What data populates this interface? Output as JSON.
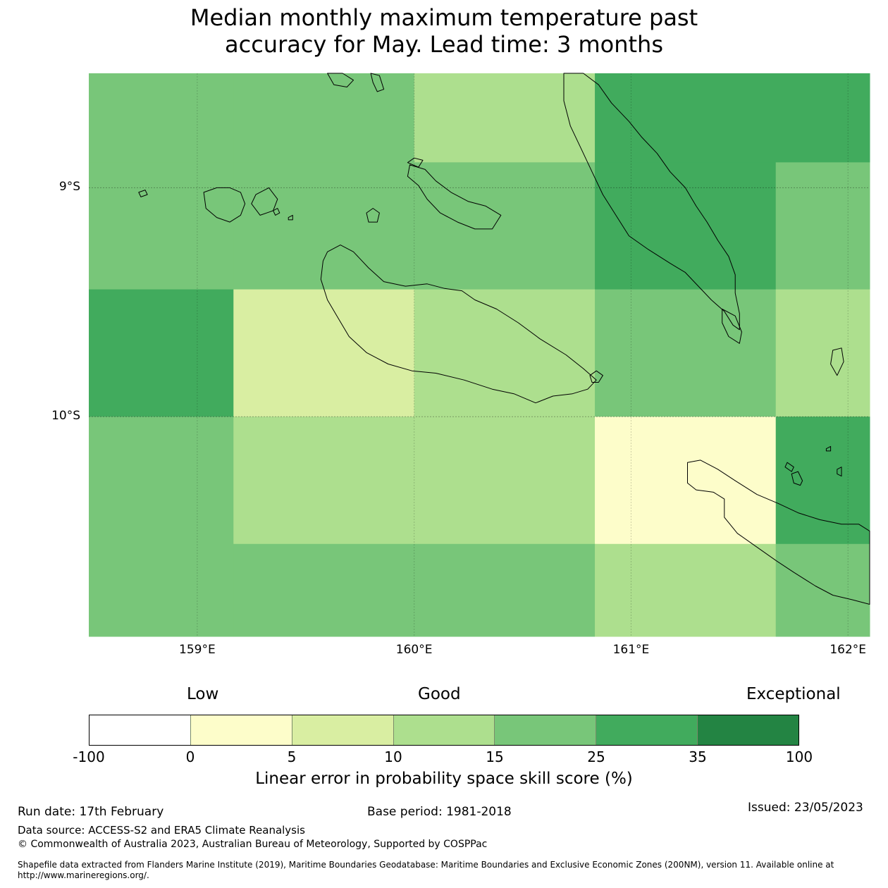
{
  "title": {
    "line1": "Median monthly maximum temperature past",
    "line2": "accuracy for May. Lead time: 3 months"
  },
  "map": {
    "extent": {
      "lon_min": 158.5,
      "lon_max": 162.1,
      "lat_min": -10.96,
      "lat_max": -8.5
    },
    "lat_ticks": [
      {
        "value": -9,
        "label": "9°S"
      },
      {
        "value": -10,
        "label": "10°S"
      }
    ],
    "lon_ticks": [
      {
        "value": 159,
        "label": "159°E"
      },
      {
        "value": 160,
        "label": "160°E"
      },
      {
        "value": 161,
        "label": "161°E"
      },
      {
        "value": 162,
        "label": "162°E"
      }
    ],
    "lon_edges": [
      158.5,
      159.167,
      160.0,
      160.833,
      161.667,
      162.1
    ],
    "lat_edges": [
      -8.5,
      -8.889,
      -9.444,
      -10.0,
      -10.556,
      -10.96
    ],
    "skill_category_grid": [
      [
        4,
        4,
        3,
        5,
        5
      ],
      [
        4,
        4,
        4,
        5,
        4
      ],
      [
        5,
        2,
        3,
        4,
        3
      ],
      [
        4,
        3,
        3,
        1,
        5
      ],
      [
        4,
        4,
        4,
        3,
        4
      ]
    ],
    "islands": [
      {
        "name": "Florida Islands west",
        "points": [
          [
            159.03,
            -9.02
          ],
          [
            159.09,
            -9.0
          ],
          [
            159.15,
            -9.0
          ],
          [
            159.2,
            -9.02
          ],
          [
            159.22,
            -9.07
          ],
          [
            159.2,
            -9.12
          ],
          [
            159.15,
            -9.15
          ],
          [
            159.09,
            -9.13
          ],
          [
            159.04,
            -9.09
          ]
        ]
      },
      {
        "name": "Florida Islands east",
        "points": [
          [
            159.27,
            -9.03
          ],
          [
            159.33,
            -9.0
          ],
          [
            159.37,
            -9.05
          ],
          [
            159.35,
            -9.1
          ],
          [
            159.29,
            -9.12
          ],
          [
            159.25,
            -9.07
          ]
        ]
      },
      {
        "name": "Small islet west",
        "points": [
          [
            158.73,
            -9.02
          ],
          [
            158.76,
            -9.01
          ],
          [
            158.77,
            -9.03
          ],
          [
            158.74,
            -9.04
          ]
        ]
      },
      {
        "name": "Small islet 1",
        "points": [
          [
            159.35,
            -9.1
          ],
          [
            159.37,
            -9.09
          ],
          [
            159.38,
            -9.11
          ],
          [
            159.36,
            -9.12
          ]
        ]
      },
      {
        "name": "Small islet 2",
        "points": [
          [
            159.42,
            -9.13
          ],
          [
            159.44,
            -9.12
          ],
          [
            159.44,
            -9.14
          ],
          [
            159.42,
            -9.14
          ]
        ]
      },
      {
        "name": "Savo-like islet",
        "points": [
          [
            159.78,
            -9.11
          ],
          [
            159.81,
            -9.09
          ],
          [
            159.84,
            -9.11
          ],
          [
            159.83,
            -9.15
          ],
          [
            159.79,
            -9.15
          ]
        ]
      },
      {
        "name": "Nggela Islands",
        "points": [
          [
            159.98,
            -8.9
          ],
          [
            160.05,
            -8.92
          ],
          [
            160.1,
            -8.97
          ],
          [
            160.17,
            -9.02
          ],
          [
            160.25,
            -9.06
          ],
          [
            160.33,
            -9.08
          ],
          [
            160.4,
            -9.12
          ],
          [
            160.36,
            -9.18
          ],
          [
            160.28,
            -9.18
          ],
          [
            160.2,
            -9.15
          ],
          [
            160.12,
            -9.11
          ],
          [
            160.06,
            -9.05
          ],
          [
            160.02,
            -8.99
          ],
          [
            159.97,
            -8.95
          ]
        ]
      },
      {
        "name": "Nggela islet",
        "points": [
          [
            159.97,
            -8.89
          ],
          [
            160.0,
            -8.87
          ],
          [
            160.04,
            -8.88
          ],
          [
            160.02,
            -8.91
          ]
        ]
      },
      {
        "name": "Guadalcanal",
        "points": [
          [
            159.6,
            -9.28
          ],
          [
            159.66,
            -9.25
          ],
          [
            159.72,
            -9.28
          ],
          [
            159.79,
            -9.35
          ],
          [
            159.86,
            -9.41
          ],
          [
            159.96,
            -9.43
          ],
          [
            160.06,
            -9.42
          ],
          [
            160.14,
            -9.44
          ],
          [
            160.22,
            -9.45
          ],
          [
            160.28,
            -9.49
          ],
          [
            160.38,
            -9.53
          ],
          [
            160.48,
            -9.59
          ],
          [
            160.58,
            -9.66
          ],
          [
            160.7,
            -9.73
          ],
          [
            160.78,
            -9.79
          ],
          [
            160.84,
            -9.84
          ],
          [
            160.8,
            -9.88
          ],
          [
            160.73,
            -9.9
          ],
          [
            160.64,
            -9.91
          ],
          [
            160.56,
            -9.94
          ],
          [
            160.46,
            -9.9
          ],
          [
            160.36,
            -9.88
          ],
          [
            160.23,
            -9.84
          ],
          [
            160.1,
            -9.81
          ],
          [
            159.99,
            -9.8
          ],
          [
            159.88,
            -9.77
          ],
          [
            159.78,
            -9.72
          ],
          [
            159.7,
            -9.65
          ],
          [
            159.65,
            -9.57
          ],
          [
            159.6,
            -9.49
          ],
          [
            159.57,
            -9.4
          ],
          [
            159.58,
            -9.32
          ]
        ]
      },
      {
        "name": "Guadalcanal islet",
        "points": [
          [
            160.81,
            -9.82
          ],
          [
            160.84,
            -9.8
          ],
          [
            160.87,
            -9.82
          ],
          [
            160.85,
            -9.85
          ],
          [
            160.82,
            -9.85
          ]
        ]
      },
      {
        "name": "Malaita",
        "points": [
          [
            160.69,
            -8.5
          ],
          [
            160.78,
            -8.5
          ],
          [
            160.85,
            -8.55
          ],
          [
            160.91,
            -8.63
          ],
          [
            160.99,
            -8.71
          ],
          [
            161.05,
            -8.78
          ],
          [
            161.12,
            -8.85
          ],
          [
            161.18,
            -8.93
          ],
          [
            161.25,
            -9.0
          ],
          [
            161.3,
            -9.08
          ],
          [
            161.35,
            -9.15
          ],
          [
            161.4,
            -9.23
          ],
          [
            161.45,
            -9.3
          ],
          [
            161.48,
            -9.38
          ],
          [
            161.48,
            -9.46
          ],
          [
            161.5,
            -9.55
          ],
          [
            161.5,
            -9.62
          ],
          [
            161.47,
            -9.6
          ],
          [
            161.43,
            -9.54
          ],
          [
            161.37,
            -9.49
          ],
          [
            161.31,
            -9.43
          ],
          [
            161.25,
            -9.37
          ],
          [
            161.18,
            -9.33
          ],
          [
            161.08,
            -9.27
          ],
          [
            160.99,
            -9.21
          ],
          [
            160.93,
            -9.12
          ],
          [
            160.87,
            -9.03
          ],
          [
            160.82,
            -8.93
          ],
          [
            160.77,
            -8.83
          ],
          [
            160.72,
            -8.73
          ],
          [
            160.69,
            -8.62
          ]
        ]
      },
      {
        "name": "Small Malaita",
        "points": [
          [
            161.42,
            -9.53
          ],
          [
            161.48,
            -9.56
          ],
          [
            161.51,
            -9.63
          ],
          [
            161.5,
            -9.68
          ],
          [
            161.45,
            -9.65
          ],
          [
            161.42,
            -9.59
          ]
        ]
      },
      {
        "name": "Ulawa",
        "points": [
          [
            161.93,
            -9.71
          ],
          [
            161.97,
            -9.7
          ],
          [
            161.98,
            -9.76
          ],
          [
            161.95,
            -9.82
          ],
          [
            161.92,
            -9.77
          ]
        ]
      },
      {
        "name": "Makira",
        "points": [
          [
            161.26,
            -10.2
          ],
          [
            161.32,
            -10.19
          ],
          [
            161.4,
            -10.23
          ],
          [
            161.48,
            -10.28
          ],
          [
            161.58,
            -10.34
          ],
          [
            161.68,
            -10.38
          ],
          [
            161.77,
            -10.42
          ],
          [
            161.87,
            -10.45
          ],
          [
            161.97,
            -10.47
          ],
          [
            162.05,
            -10.47
          ],
          [
            162.1,
            -10.5
          ],
          [
            162.1,
            -10.82
          ],
          [
            162.02,
            -10.8
          ],
          [
            161.93,
            -10.78
          ],
          [
            161.85,
            -10.74
          ],
          [
            161.75,
            -10.68
          ],
          [
            161.67,
            -10.63
          ],
          [
            161.58,
            -10.57
          ],
          [
            161.49,
            -10.51
          ],
          [
            161.43,
            -10.44
          ],
          [
            161.43,
            -10.36
          ],
          [
            161.38,
            -10.33
          ],
          [
            161.3,
            -10.32
          ],
          [
            161.26,
            -10.29
          ]
        ]
      },
      {
        "name": "Makira islet 1",
        "points": [
          [
            161.72,
            -10.2
          ],
          [
            161.75,
            -10.22
          ],
          [
            161.74,
            -10.24
          ],
          [
            161.71,
            -10.22
          ]
        ]
      },
      {
        "name": "Makira islet 2",
        "points": [
          [
            161.74,
            -10.25
          ],
          [
            161.77,
            -10.24
          ],
          [
            161.79,
            -10.28
          ],
          [
            161.78,
            -10.3
          ],
          [
            161.75,
            -10.29
          ]
        ]
      },
      {
        "name": "Makira islet 3",
        "points": [
          [
            161.9,
            -10.14
          ],
          [
            161.92,
            -10.13
          ],
          [
            161.92,
            -10.15
          ],
          [
            161.9,
            -10.15
          ]
        ]
      },
      {
        "name": "Makira islet 4",
        "points": [
          [
            161.95,
            -10.23
          ],
          [
            161.97,
            -10.22
          ],
          [
            161.97,
            -10.26
          ],
          [
            161.95,
            -10.25
          ]
        ]
      },
      {
        "name": "Florida north islet",
        "points": [
          [
            159.6,
            -8.5
          ],
          [
            159.67,
            -8.5
          ],
          [
            159.72,
            -8.53
          ],
          [
            159.69,
            -8.56
          ],
          [
            159.63,
            -8.55
          ]
        ]
      },
      {
        "name": "Florida north islet 2",
        "points": [
          [
            159.8,
            -8.5
          ],
          [
            159.84,
            -8.51
          ],
          [
            159.86,
            -8.57
          ],
          [
            159.83,
            -8.58
          ],
          [
            159.81,
            -8.54
          ]
        ]
      }
    ]
  },
  "legend": {
    "low": "Low",
    "good": "Good",
    "exceptional": "Exceptional",
    "colors": [
      "#ffffff",
      "#fdfdca",
      "#d9eea2",
      "#addf8e",
      "#78c679",
      "#41ab5d",
      "#238443"
    ],
    "ticks": [
      "-100",
      "0",
      "5",
      "10",
      "15",
      "25",
      "35",
      "100"
    ],
    "label": "Linear error in probability space skill score (%)"
  },
  "footer": {
    "run_date": "Run date: 17th February",
    "base_period": "Base period: 1981-2018",
    "issued": "Issued: 23/05/2023",
    "data_source": "Data source: ACCESS-S2 and ERA5 Climate Reanalysis",
    "copyright": "© Commonwealth of Australia 2023, Australian Bureau of Meteorology, Supported by COSPPac",
    "shapefile_line1": "Shapefile data extracted from Flanders Marine Institute (2019), Maritime Boundaries Geodatabase: Maritime Boundaries and Exclusive Economic Zones (200NM), version 11. Available online at",
    "shapefile_line2": "http://www.marineregions.org/."
  }
}
